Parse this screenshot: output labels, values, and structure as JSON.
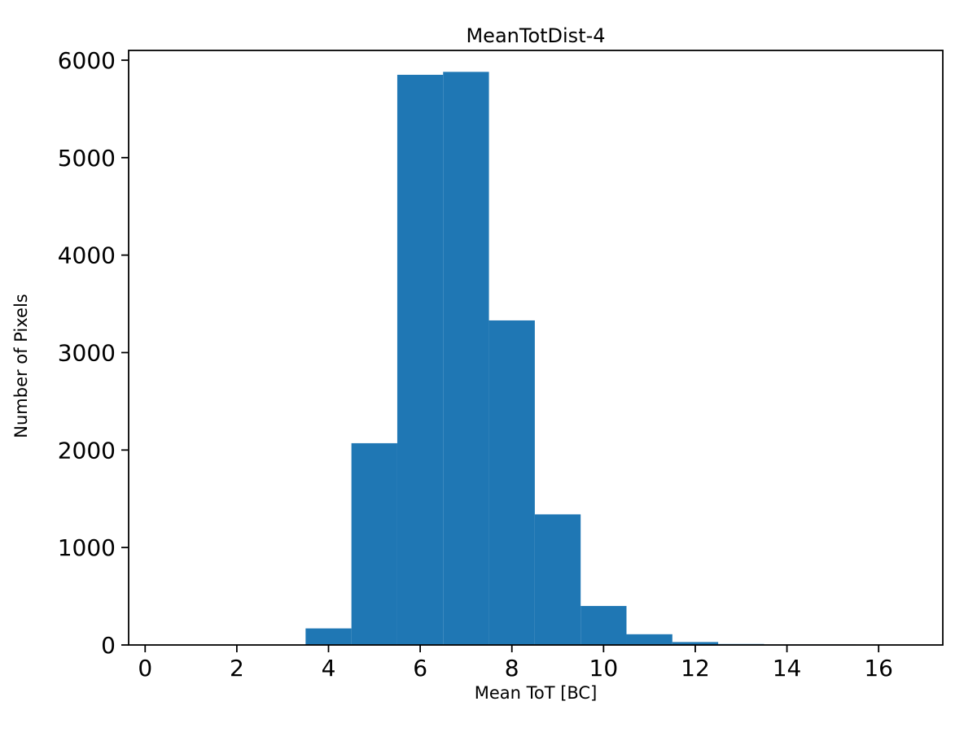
{
  "chart_data": {
    "type": "bar",
    "subtype": "histogram",
    "title": "MeanTotDist-4",
    "xlabel": "Mean ToT [BC]",
    "ylabel": "Number of Pixels",
    "bar_color": "#1f77b4",
    "axis_color": "#000000",
    "background_color": "#ffffff",
    "grid": false,
    "legend": null,
    "bin_edges": [
      3.5,
      4.5,
      5.5,
      6.5,
      7.5,
      8.5,
      9.5,
      10.5,
      11.5,
      12.5,
      13.5,
      14.5,
      15.5
    ],
    "counts": [
      170,
      2070,
      5850,
      5880,
      3330,
      1340,
      400,
      110,
      30,
      10,
      5,
      5
    ],
    "xlim": [
      -0.36,
      17.4
    ],
    "ylim": [
      0,
      6100
    ],
    "xticks": [
      0,
      2,
      4,
      6,
      8,
      10,
      12,
      14,
      16
    ],
    "yticks": [
      0,
      1000,
      2000,
      3000,
      4000,
      5000,
      6000
    ]
  }
}
